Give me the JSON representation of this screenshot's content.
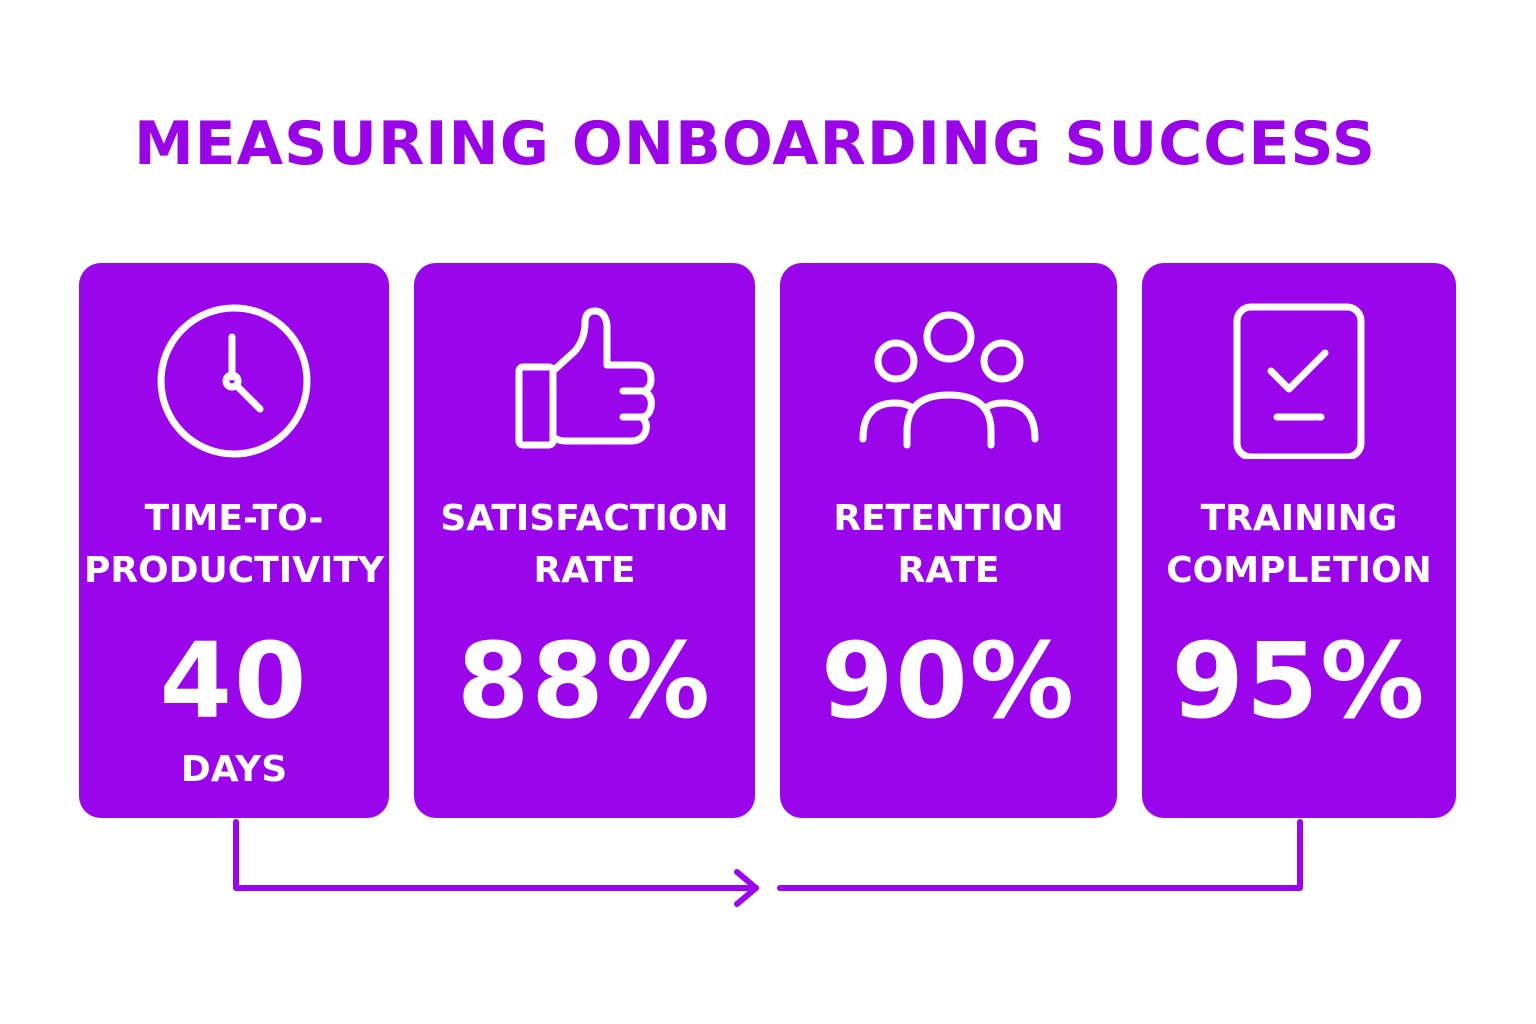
{
  "title": "MEASURING ONBOARDING SUCCESS",
  "colors": {
    "accent": "#9A05EB",
    "title": "#9A05E8",
    "text_on_card": "#FFFFFF"
  },
  "metrics": [
    {
      "label_line1": "TIME-TO-",
      "label_line2": "PRODUCTIVITY",
      "value": "40",
      "unit": "DAYS",
      "icon": "clock-icon"
    },
    {
      "label_line1": "SATISFACTION",
      "label_line2": "RATE",
      "value": "88%",
      "unit": "",
      "icon": "thumbs-up-icon"
    },
    {
      "label_line1": "RETENTION",
      "label_line2": "RATE",
      "value": "90%",
      "unit": "",
      "icon": "people-group-icon"
    },
    {
      "label_line1": "TRAINING",
      "label_line2": "COMPLETION",
      "value": "95%",
      "unit": "",
      "icon": "clipboard-check-icon"
    }
  ]
}
